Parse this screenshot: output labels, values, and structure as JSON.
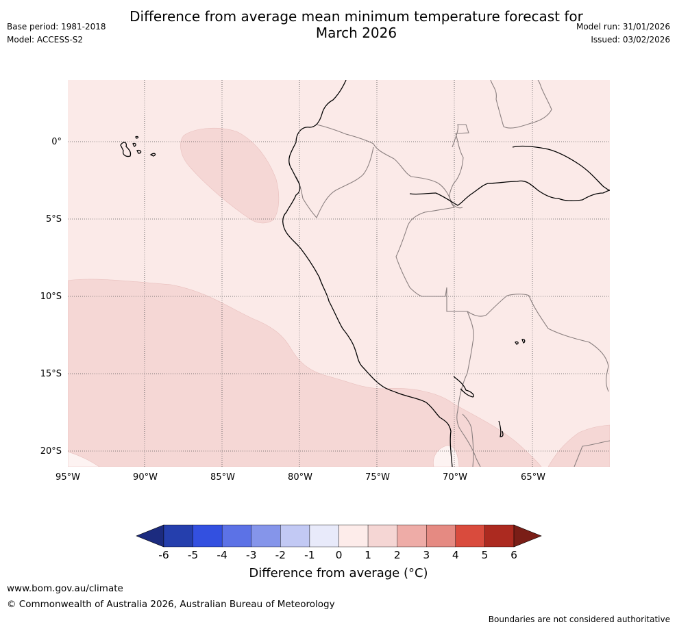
{
  "header": {
    "title": "Difference from average mean minimum temperature forecast for\nMarch 2026",
    "base_period": "Base period: 1981-2018",
    "model": "Model: ACCESS-S2",
    "model_run": "Model run: 31/01/2026",
    "issued": "Issued: 03/02/2026"
  },
  "map": {
    "lat_labels": [
      "0°",
      "5°S",
      "10°S",
      "15°S",
      "20°S"
    ],
    "lon_labels": [
      "95°W",
      "90°W",
      "85°W",
      "80°W",
      "75°W",
      "70°W",
      "65°W"
    ],
    "extent": {
      "lon_min": -95,
      "lon_max": -60,
      "lat_min": -21,
      "lat_max": 4
    },
    "region_categories": [
      {
        "name": "background",
        "range": "0 to 1",
        "color": "#fbeae8"
      },
      {
        "name": "warm-anomaly-areas",
        "range": "1 to 2",
        "color": "#f5d7d5"
      },
      {
        "name": "near-average-patch",
        "range": "0 to 1",
        "color": "#fdf3f2"
      }
    ]
  },
  "colorbar": {
    "ticks": [
      "-6",
      "-5",
      "-4",
      "-3",
      "-2",
      "-1",
      "0",
      "1",
      "2",
      "3",
      "4",
      "5",
      "6"
    ],
    "colors": [
      "#1c2b7f",
      "#253fad",
      "#3350e0",
      "#5c72e6",
      "#8595ea",
      "#c2c9f4",
      "#e8eafa",
      "#fdecea",
      "#f5d6d4",
      "#eeaca7",
      "#e58a82",
      "#d94b3d",
      "#ac2a20",
      "#7a1e17"
    ],
    "label": "Difference from average (°C)"
  },
  "footer": {
    "url": "www.bom.gov.au/climate",
    "copyright": "© Commonwealth of Australia 2026, Australian Bureau of Meteorology",
    "disclaimer": "Boundaries are not considered authoritative"
  }
}
